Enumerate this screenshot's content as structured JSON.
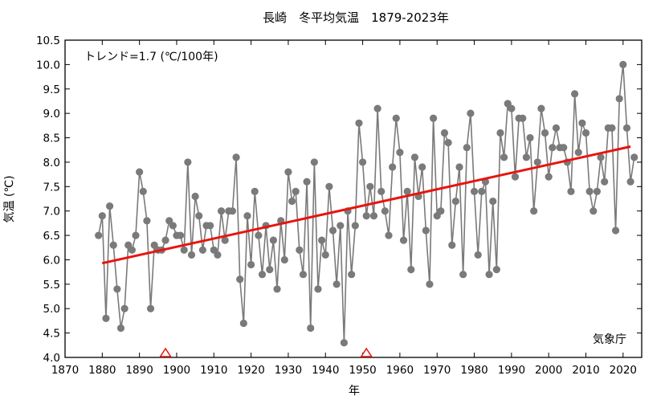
{
  "chart_data": {
    "type": "line",
    "title": "長崎　冬平均気温　1879-2023年",
    "xlabel": "年",
    "ylabel": "気温 (℃)",
    "trend_label": "トレンド=1.7 (℃/100年)",
    "source_label": "気象庁",
    "xlim": [
      1870,
      2025
    ],
    "ylim": [
      4.0,
      10.5
    ],
    "x_ticks": [
      1870,
      1880,
      1890,
      1900,
      1910,
      1920,
      1930,
      1940,
      1950,
      1960,
      1970,
      1980,
      1990,
      2000,
      2010,
      2020
    ],
    "y_ticks": [
      "4.0",
      "4.5",
      "5.0",
      "5.5",
      "6.0",
      "6.5",
      "7.0",
      "7.5",
      "8.0",
      "8.5",
      "9.0",
      "9.5",
      "10.0",
      "10.5"
    ],
    "grid": false,
    "series": [
      {
        "color": "#7a7a7a",
        "x_start": 1879,
        "values": [
          6.5,
          6.9,
          4.8,
          7.1,
          6.3,
          5.4,
          4.6,
          5.0,
          6.3,
          6.2,
          6.5,
          7.8,
          7.4,
          6.8,
          5.0,
          6.3,
          6.2,
          6.2,
          6.4,
          6.8,
          6.7,
          6.5,
          6.5,
          6.2,
          8.0,
          6.1,
          7.3,
          6.9,
          6.2,
          6.7,
          6.7,
          6.2,
          6.1,
          7.0,
          6.4,
          7.0,
          7.0,
          8.1,
          5.6,
          4.7,
          6.9,
          5.9,
          7.4,
          6.5,
          5.7,
          6.7,
          5.8,
          6.4,
          5.4,
          6.8,
          6.0,
          7.8,
          7.2,
          7.4,
          6.2,
          5.7,
          7.6,
          4.6,
          8.0,
          5.4,
          6.4,
          6.1,
          7.5,
          6.6,
          5.5,
          6.7,
          4.3,
          7.0,
          5.7,
          6.7,
          8.8,
          8.0,
          6.9,
          7.5,
          6.9,
          9.1,
          7.4,
          7.0,
          6.5,
          7.9,
          8.9,
          8.2,
          6.4,
          7.4,
          5.8,
          8.1,
          7.3,
          7.9,
          6.6,
          5.5,
          8.9,
          6.9,
          7.0,
          8.6,
          8.4,
          6.3,
          7.2,
          7.9,
          5.7,
          8.3,
          9.0,
          7.4,
          6.1,
          7.4,
          7.6,
          5.7,
          7.2,
          5.8,
          8.6,
          8.1,
          9.2,
          9.1,
          7.7,
          8.9,
          8.9,
          8.1,
          8.5,
          7.0,
          8.0,
          9.1,
          8.6,
          7.7,
          8.3,
          8.7,
          8.3,
          8.3,
          8.0,
          7.4,
          9.4,
          8.2,
          8.8,
          8.6,
          7.4,
          7.0,
          7.4,
          8.1,
          7.6,
          8.7,
          8.7,
          6.6,
          9.3,
          10.0,
          8.7,
          7.6,
          8.1
        ]
      }
    ],
    "trend": {
      "color": "#e8140f",
      "x": [
        1880,
        2022
      ],
      "y": [
        5.93,
        8.32
      ]
    },
    "markers": {
      "color": "#e8140f",
      "shape": "triangle",
      "x": [
        1897,
        1951
      ]
    }
  }
}
